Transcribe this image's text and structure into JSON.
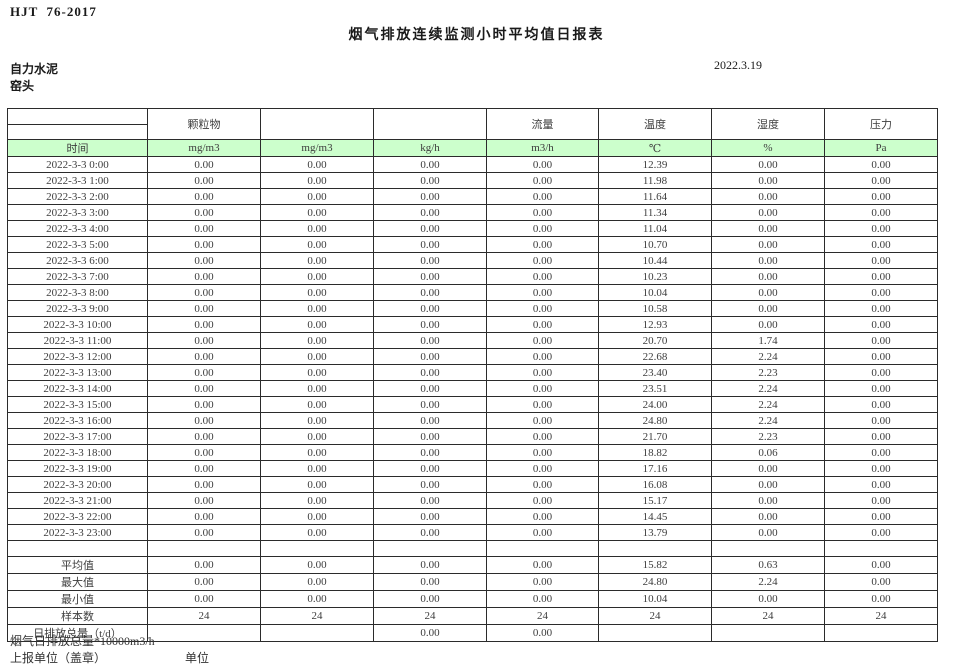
{
  "page": {
    "doc_code": "HJT  76-2017",
    "title": "烟气排放连续监测小时平均值日报表",
    "company": "自力水泥",
    "location": "窑头",
    "date": "2022.3.19",
    "footnote": "烟气日排放总量*10000m3/h",
    "report_unit_label": "上报单位（盖章）",
    "unit_label": "单位"
  },
  "table": {
    "header_bg": "#ccffcc",
    "group_headers": [
      "",
      "颗粒物",
      "",
      "",
      "流量",
      "温度",
      "湿度",
      "压力"
    ],
    "units_row": [
      "时间",
      "mg/m3",
      "mg/m3",
      "kg/h",
      "m3/h",
      "℃",
      "%",
      "Pa"
    ],
    "rows": [
      {
        "time": "2022-3-3 0:00",
        "values": [
          "0.00",
          "0.00",
          "0.00",
          "0.00",
          "12.39",
          "0.00",
          "0.00"
        ]
      },
      {
        "time": "2022-3-3 1:00",
        "values": [
          "0.00",
          "0.00",
          "0.00",
          "0.00",
          "11.98",
          "0.00",
          "0.00"
        ]
      },
      {
        "time": "2022-3-3 2:00",
        "values": [
          "0.00",
          "0.00",
          "0.00",
          "0.00",
          "11.64",
          "0.00",
          "0.00"
        ]
      },
      {
        "time": "2022-3-3 3:00",
        "values": [
          "0.00",
          "0.00",
          "0.00",
          "0.00",
          "11.34",
          "0.00",
          "0.00"
        ]
      },
      {
        "time": "2022-3-3 4:00",
        "values": [
          "0.00",
          "0.00",
          "0.00",
          "0.00",
          "11.04",
          "0.00",
          "0.00"
        ]
      },
      {
        "time": "2022-3-3 5:00",
        "values": [
          "0.00",
          "0.00",
          "0.00",
          "0.00",
          "10.70",
          "0.00",
          "0.00"
        ]
      },
      {
        "time": "2022-3-3 6:00",
        "values": [
          "0.00",
          "0.00",
          "0.00",
          "0.00",
          "10.44",
          "0.00",
          "0.00"
        ]
      },
      {
        "time": "2022-3-3 7:00",
        "values": [
          "0.00",
          "0.00",
          "0.00",
          "0.00",
          "10.23",
          "0.00",
          "0.00"
        ]
      },
      {
        "time": "2022-3-3 8:00",
        "values": [
          "0.00",
          "0.00",
          "0.00",
          "0.00",
          "10.04",
          "0.00",
          "0.00"
        ]
      },
      {
        "time": "2022-3-3 9:00",
        "values": [
          "0.00",
          "0.00",
          "0.00",
          "0.00",
          "10.58",
          "0.00",
          "0.00"
        ]
      },
      {
        "time": "2022-3-3 10:00",
        "values": [
          "0.00",
          "0.00",
          "0.00",
          "0.00",
          "12.93",
          "0.00",
          "0.00"
        ]
      },
      {
        "time": "2022-3-3 11:00",
        "values": [
          "0.00",
          "0.00",
          "0.00",
          "0.00",
          "20.70",
          "1.74",
          "0.00"
        ]
      },
      {
        "time": "2022-3-3 12:00",
        "values": [
          "0.00",
          "0.00",
          "0.00",
          "0.00",
          "22.68",
          "2.24",
          "0.00"
        ]
      },
      {
        "time": "2022-3-3 13:00",
        "values": [
          "0.00",
          "0.00",
          "0.00",
          "0.00",
          "23.40",
          "2.23",
          "0.00"
        ]
      },
      {
        "time": "2022-3-3 14:00",
        "values": [
          "0.00",
          "0.00",
          "0.00",
          "0.00",
          "23.51",
          "2.24",
          "0.00"
        ]
      },
      {
        "time": "2022-3-3 15:00",
        "values": [
          "0.00",
          "0.00",
          "0.00",
          "0.00",
          "24.00",
          "2.24",
          "0.00"
        ]
      },
      {
        "time": "2022-3-3 16:00",
        "values": [
          "0.00",
          "0.00",
          "0.00",
          "0.00",
          "24.80",
          "2.24",
          "0.00"
        ]
      },
      {
        "time": "2022-3-3 17:00",
        "values": [
          "0.00",
          "0.00",
          "0.00",
          "0.00",
          "21.70",
          "2.23",
          "0.00"
        ]
      },
      {
        "time": "2022-3-3 18:00",
        "values": [
          "0.00",
          "0.00",
          "0.00",
          "0.00",
          "18.82",
          "0.06",
          "0.00"
        ]
      },
      {
        "time": "2022-3-3 19:00",
        "values": [
          "0.00",
          "0.00",
          "0.00",
          "0.00",
          "17.16",
          "0.00",
          "0.00"
        ]
      },
      {
        "time": "2022-3-3 20:00",
        "values": [
          "0.00",
          "0.00",
          "0.00",
          "0.00",
          "16.08",
          "0.00",
          "0.00"
        ]
      },
      {
        "time": "2022-3-3 21:00",
        "values": [
          "0.00",
          "0.00",
          "0.00",
          "0.00",
          "15.17",
          "0.00",
          "0.00"
        ]
      },
      {
        "time": "2022-3-3 22:00",
        "values": [
          "0.00",
          "0.00",
          "0.00",
          "0.00",
          "14.45",
          "0.00",
          "0.00"
        ]
      },
      {
        "time": "2022-3-3 23:00",
        "values": [
          "0.00",
          "0.00",
          "0.00",
          "0.00",
          "13.79",
          "0.00",
          "0.00"
        ]
      }
    ],
    "summary": [
      {
        "label": "平均值",
        "values": [
          "0.00",
          "0.00",
          "0.00",
          "0.00",
          "15.82",
          "0.63",
          "0.00"
        ]
      },
      {
        "label": "最大值",
        "values": [
          "0.00",
          "0.00",
          "0.00",
          "0.00",
          "24.80",
          "2.24",
          "0.00"
        ]
      },
      {
        "label": "最小值",
        "values": [
          "0.00",
          "0.00",
          "0.00",
          "0.00",
          "10.04",
          "0.00",
          "0.00"
        ]
      },
      {
        "label": "样本数",
        "values": [
          "24",
          "24",
          "24",
          "24",
          "24",
          "24",
          "24"
        ]
      },
      {
        "label": "日排放总量（t/d）",
        "values": [
          "",
          "",
          "0.00",
          "0.00",
          "",
          "",
          ""
        ]
      }
    ]
  }
}
